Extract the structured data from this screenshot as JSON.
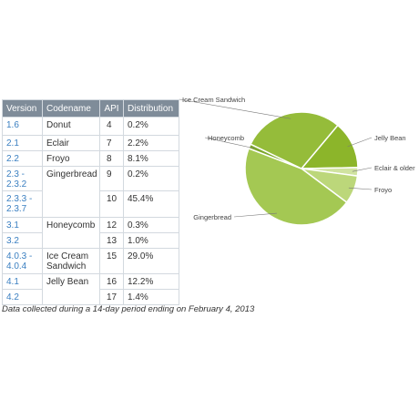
{
  "table": {
    "headers": [
      "Version",
      "Codename",
      "API",
      "Distribution"
    ],
    "rows": [
      {
        "version": "1.6",
        "codename": "Donut",
        "api": "4",
        "distribution": "0.2%",
        "h": 20
      },
      {
        "version": "2.1",
        "codename": "Eclair",
        "api": "7",
        "distribution": "2.2%",
        "h": 17
      },
      {
        "version": "2.2",
        "codename": "Froyo",
        "api": "8",
        "distribution": "8.1%",
        "h": 17
      },
      {
        "version": "2.3 -\n2.3.2",
        "codename": "Gingerbread",
        "api": "9",
        "distribution": "0.2%",
        "h": 27
      },
      {
        "version": "2.3.3 -\n2.3.7",
        "codename": "",
        "api": "10",
        "distribution": "45.4%",
        "h": 29
      },
      {
        "version": "3.1",
        "codename": "Honeycomb",
        "api": "12",
        "distribution": "0.3%",
        "h": 17
      },
      {
        "version": "3.2",
        "codename": "",
        "api": "13",
        "distribution": "1.0%",
        "h": 17
      },
      {
        "version": "4.0.3 -\n4.0.4",
        "codename": "Ice Cream\nSandwich",
        "api": "15",
        "distribution": "29.0%",
        "h": 28
      },
      {
        "version": "4.1",
        "codename": "Jelly Bean",
        "api": "16",
        "distribution": "12.2%",
        "h": 17
      },
      {
        "version": "4.2",
        "codename": "",
        "api": "17",
        "distribution": "1.4%",
        "h": 17
      }
    ]
  },
  "caption": "Data collected during a 14-day period ending on February 4, 2013",
  "chart_data": {
    "type": "pie",
    "categories": [
      "Jelly Bean",
      "Eclair & older",
      "Froyo",
      "Gingerbread",
      "Honeycomb",
      "Ice Cream Sandwich"
    ],
    "values": [
      13.6,
      2.4,
      8.1,
      45.6,
      1.3,
      29.0
    ],
    "colors": [
      "#8cb52a",
      "#d0e3a0",
      "#bcd77a",
      "#a4c853",
      "#7ea82c",
      "#95bc3a"
    ],
    "legend": "slice labels"
  }
}
